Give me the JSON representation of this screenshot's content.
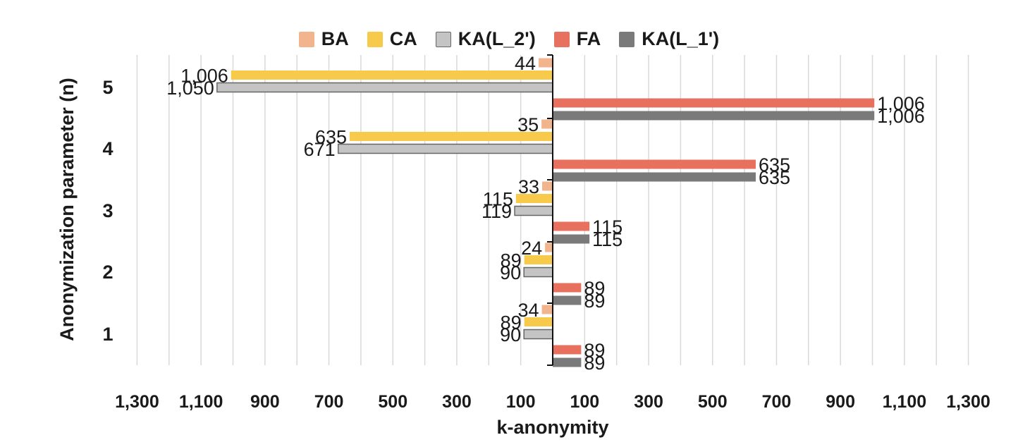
{
  "chart_data": {
    "type": "bar",
    "orientation": "horizontal-diverging",
    "xlabel": "k-anonymity",
    "ylabel": "Anonymization parameter (n)",
    "categories": [
      "1",
      "2",
      "3",
      "4",
      "5"
    ],
    "xlim": [
      -1300,
      1300
    ],
    "x_tick_labels": [
      "1,300",
      "1,100",
      "900",
      "700",
      "500",
      "300",
      "100",
      "100",
      "300",
      "500",
      "700",
      "900",
      "1,100",
      "1,300"
    ],
    "x_tick_values": [
      -1300,
      -1100,
      -900,
      -700,
      -500,
      -300,
      -100,
      100,
      300,
      500,
      700,
      900,
      1100,
      1300
    ],
    "grid": true,
    "legend_position": "top",
    "series": [
      {
        "name": "BA",
        "side": "left",
        "color": "#f2b48c",
        "values": [
          34,
          24,
          33,
          35,
          44
        ],
        "labels": [
          "34",
          "24",
          "33",
          "35",
          "44"
        ]
      },
      {
        "name": "CA",
        "side": "left",
        "color": "#f7ca4c",
        "values": [
          89,
          89,
          115,
          635,
          1006
        ],
        "labels": [
          "89",
          "89",
          "115",
          "635",
          "1,006"
        ]
      },
      {
        "name": "KA(L_2')",
        "side": "left",
        "color": "#c4c4c4",
        "values": [
          90,
          90,
          119,
          671,
          1050
        ],
        "labels": [
          "90",
          "90",
          "119",
          "671",
          "1,050"
        ]
      },
      {
        "name": "FA",
        "side": "right",
        "color": "#e8705e",
        "values": [
          89,
          89,
          115,
          635,
          1006
        ],
        "labels": [
          "89",
          "89",
          "115",
          "635",
          "1,006"
        ]
      },
      {
        "name": "KA(L_1')",
        "side": "right",
        "color": "#7a7a7a",
        "values": [
          89,
          89,
          115,
          635,
          1006
        ],
        "labels": [
          "89",
          "89",
          "115",
          "635",
          "1,006"
        ]
      }
    ]
  }
}
